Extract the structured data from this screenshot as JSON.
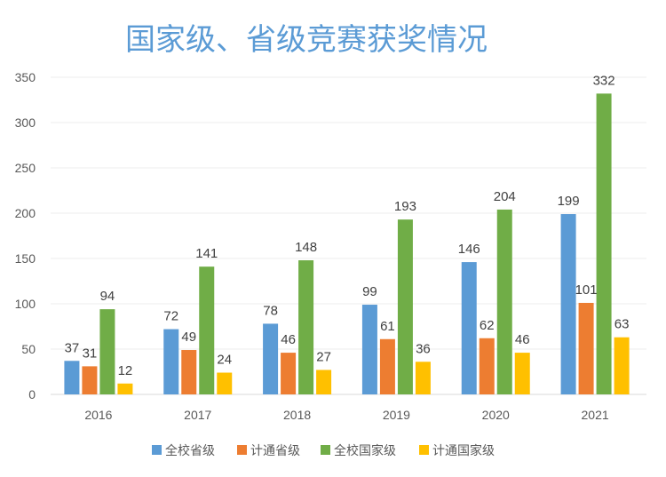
{
  "chart_data": {
    "type": "bar",
    "title": "国家级、省级竞赛获奖情况",
    "categories": [
      "2016",
      "2017",
      "2018",
      "2019",
      "2020",
      "2021"
    ],
    "series": [
      {
        "name": "全校省级",
        "color": "#5b9bd5",
        "values": [
          37,
          72,
          78,
          99,
          146,
          199
        ]
      },
      {
        "name": "计通省级",
        "color": "#ed7d31",
        "values": [
          31,
          49,
          46,
          61,
          62,
          101
        ]
      },
      {
        "name": "全校国家级",
        "color": "#70ad47",
        "values": [
          94,
          141,
          148,
          193,
          204,
          332
        ]
      },
      {
        "name": "计通国家级",
        "color": "#ffc000",
        "values": [
          12,
          24,
          27,
          36,
          46,
          63
        ]
      }
    ],
    "ylim": [
      0,
      350
    ],
    "yticks": [
      "0",
      "50",
      "100",
      "150",
      "200",
      "250",
      "300",
      "350"
    ],
    "grid": true,
    "legend": "bottom"
  }
}
